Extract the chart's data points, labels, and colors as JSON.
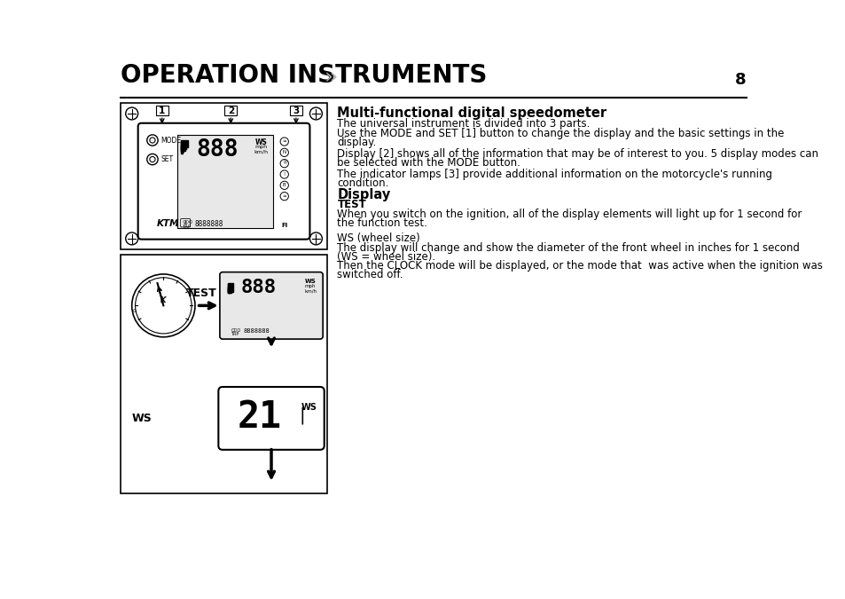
{
  "title": "OPERATION INSTRUMENTS",
  "title_arrows": "»",
  "page_number": "8",
  "background_color": "#ffffff",
  "section1_title": "Multi-functional digital speedometer",
  "p1": "The universal instrument is divided into 3 parts.",
  "p2a": "Use the MODE and SET ",
  "p2b": "[1]",
  "p2c": " button to change the display and the basic settings in the",
  "p2d": "display.",
  "p3a": "Display ",
  "p3b": "[2]",
  "p3c": " shows all of the information that may be of interest to you. 5 display modes can",
  "p3d": "be selected with the MODE button.",
  "p4a": "The indicator lamps ",
  "p4b": "[3]",
  "p4c": " provide additional information on the motorcycle's running",
  "p4d": "condition.",
  "section2_title": "Display",
  "sub1": "TEST",
  "t1a": "When you switch on the ignition, all of the display elements will light up for 1 second for",
  "t1b": "the function test.",
  "sub2": "WS (wheel size)",
  "t2a": "The display will change and show the diameter of the front wheel in inches for 1 second",
  "t2b": "(WS = wheel size).",
  "t2c": "Then the CLOCK mode will be displayed, or the mode that  was active when the ignition was",
  "t2d": "switched off."
}
